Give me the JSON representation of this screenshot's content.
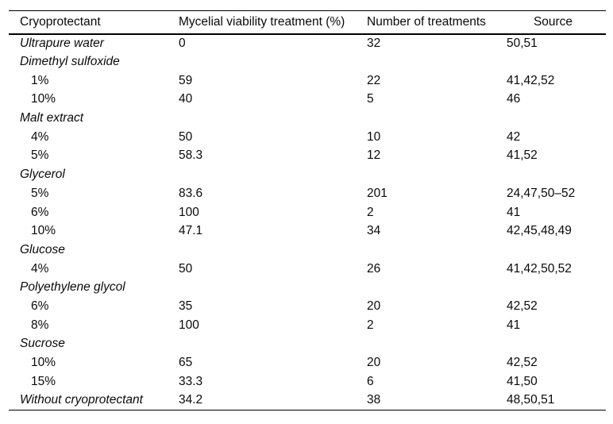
{
  "table": {
    "columns": [
      {
        "label": "Cryoprotectant"
      },
      {
        "label": "Mycelial viability treatment (%)"
      },
      {
        "label": "Number of treatments"
      },
      {
        "label": "Source"
      }
    ],
    "rows": [
      {
        "type": "item",
        "label": "Ultrapure water",
        "viability": "0",
        "treatments": "32",
        "source": "50,51"
      },
      {
        "type": "group",
        "label": "Dimethyl sulfoxide",
        "viability": "",
        "treatments": "",
        "source": ""
      },
      {
        "type": "sub",
        "label": "1%",
        "viability": "59",
        "treatments": "22",
        "source": "41,42,52"
      },
      {
        "type": "sub",
        "label": "10%",
        "viability": "40",
        "treatments": "5",
        "source": "46"
      },
      {
        "type": "group",
        "label": "Malt extract",
        "viability": "",
        "treatments": "",
        "source": ""
      },
      {
        "type": "sub",
        "label": "4%",
        "viability": "50",
        "treatments": "10",
        "source": "42"
      },
      {
        "type": "sub",
        "label": "5%",
        "viability": "58.3",
        "treatments": "12",
        "source": "41,52"
      },
      {
        "type": "group",
        "label": "Glycerol",
        "viability": "",
        "treatments": "",
        "source": ""
      },
      {
        "type": "sub",
        "label": "5%",
        "viability": "83.6",
        "treatments": "201",
        "source": "24,47,50–52"
      },
      {
        "type": "sub",
        "label": "6%",
        "viability": "100",
        "treatments": "2",
        "source": "41"
      },
      {
        "type": "sub",
        "label": "10%",
        "viability": "47.1",
        "treatments": "34",
        "source": "42,45,48,49"
      },
      {
        "type": "group",
        "label": "Glucose",
        "viability": "",
        "treatments": "",
        "source": ""
      },
      {
        "type": "sub",
        "label": "4%",
        "viability": "50",
        "treatments": "26",
        "source": "41,42,50,52"
      },
      {
        "type": "group",
        "label": "Polyethylene glycol",
        "viability": "",
        "treatments": "",
        "source": ""
      },
      {
        "type": "sub",
        "label": "6%",
        "viability": "35",
        "treatments": "20",
        "source": "42,52"
      },
      {
        "type": "sub",
        "label": "8%",
        "viability": "100",
        "treatments": "2",
        "source": "41"
      },
      {
        "type": "group",
        "label": "Sucrose",
        "viability": "",
        "treatments": "",
        "source": ""
      },
      {
        "type": "sub",
        "label": "10%",
        "viability": "65",
        "treatments": "20",
        "source": "42,52"
      },
      {
        "type": "sub",
        "label": "15%",
        "viability": "33.3",
        "treatments": "6",
        "source": "41,50"
      },
      {
        "type": "item",
        "label": "Without cryoprotectant",
        "viability": "34.2",
        "treatments": "38",
        "source": "48,50,51"
      }
    ]
  }
}
